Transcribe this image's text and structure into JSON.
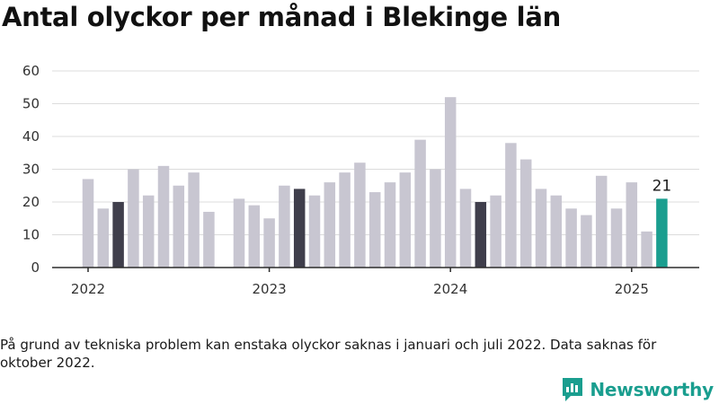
{
  "title": "Antal olyckor per månad i Blekinge län",
  "footnote": "På grund av tekniska problem kan enstaka olyckor saknas i januari och juli 2022. Data saknas för oktober 2022.",
  "brand": {
    "name": "Newsworthy"
  },
  "chart_data": {
    "type": "bar",
    "categories": [
      "2022-01",
      "2022-02",
      "2022-03",
      "2022-04",
      "2022-05",
      "2022-06",
      "2022-07",
      "2022-08",
      "2022-09",
      "2022-10",
      "2022-11",
      "2022-12",
      "2023-01",
      "2023-02",
      "2023-03",
      "2023-04",
      "2023-05",
      "2023-06",
      "2023-07",
      "2023-08",
      "2023-09",
      "2023-10",
      "2023-11",
      "2023-12",
      "2024-01",
      "2024-02",
      "2024-03",
      "2024-04",
      "2024-05",
      "2024-06",
      "2024-07",
      "2024-08",
      "2024-09",
      "2024-10",
      "2024-11",
      "2024-12",
      "2025-01",
      "2025-02",
      "2025-03"
    ],
    "values": [
      27,
      18,
      20,
      30,
      22,
      31,
      25,
      29,
      17,
      null,
      21,
      19,
      15,
      25,
      24,
      22,
      26,
      29,
      32,
      23,
      26,
      29,
      39,
      30,
      52,
      24,
      20,
      22,
      38,
      33,
      24,
      22,
      18,
      16,
      28,
      18,
      26,
      11,
      21
    ],
    "highlight_march": [
      "2022-03",
      "2023-03",
      "2024-03"
    ],
    "latest": {
      "category": "2025-03",
      "value": 21,
      "label": "21"
    },
    "x_tick_labels": [
      "2022",
      "2023",
      "2024",
      "2025"
    ],
    "y_ticks": [
      0,
      10,
      20,
      30,
      40,
      50,
      60
    ],
    "ylim": [
      0,
      60
    ],
    "grid": true,
    "colors": {
      "default": "#c8c6d1",
      "march": "#3f3e4b",
      "latest": "#1a9e8f",
      "grid": "#dcdcdc",
      "axis": "#2b2b2b"
    }
  }
}
